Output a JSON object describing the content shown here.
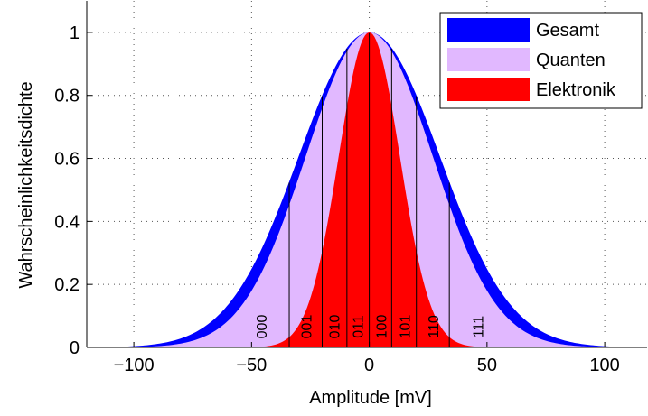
{
  "chart_data": {
    "type": "area",
    "title": "",
    "xlabel": "Amplitude [mV]",
    "ylabel": "Wahrscheinlichkeitsdichte",
    "xlim": [
      -120,
      118
    ],
    "ylim": [
      0,
      1.1
    ],
    "xticks": [
      -100,
      -50,
      0,
      50,
      100
    ],
    "yticks": [
      0,
      0.2,
      0.4,
      0.6,
      0.8,
      1
    ],
    "xtick_labels": [
      "−100",
      "−50",
      "0",
      "50",
      "100"
    ],
    "ytick_labels": [
      "0",
      "0.2",
      "0.4",
      "0.6",
      "0.8",
      "1"
    ],
    "grid": true,
    "legend_position": "top-right",
    "series": [
      {
        "name": "Gesamt",
        "color": "#0000ff",
        "shape": "gaussian",
        "peak": 1.0,
        "sigma": 30
      },
      {
        "name": "Quanten",
        "color": "#e1b8ff",
        "shape": "gaussian",
        "peak": 1.0,
        "sigma": 27
      },
      {
        "name": "Elektronik",
        "color": "#ff0000",
        "shape": "gaussian",
        "peak": 1.0,
        "sigma": 13
      }
    ],
    "thresholds": [
      -34,
      -20,
      -9.5,
      0,
      9.5,
      20,
      34
    ],
    "codes": [
      {
        "label": "000",
        "x": -46
      },
      {
        "label": "001",
        "x": -27
      },
      {
        "label": "010",
        "x": -15
      },
      {
        "label": "011",
        "x": -5
      },
      {
        "label": "100",
        "x": 5
      },
      {
        "label": "101",
        "x": 15
      },
      {
        "label": "110",
        "x": 27
      },
      {
        "label": "111",
        "x": 46
      }
    ]
  }
}
